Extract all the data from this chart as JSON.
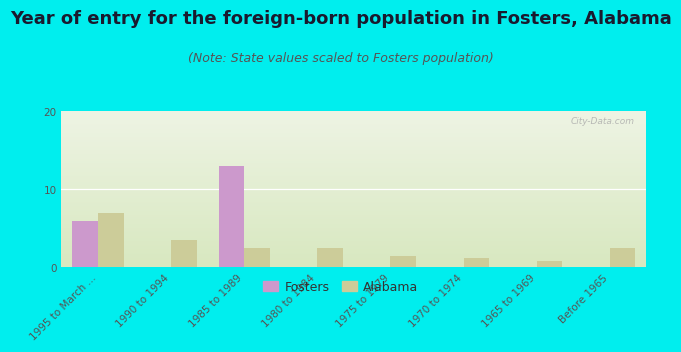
{
  "title": "Year of entry for the foreign-born population in Fosters, Alabama",
  "subtitle": "(Note: State values scaled to Fosters population)",
  "background_color": "#00eeee",
  "watermark": "City-Data.com",
  "categories": [
    "1995 to March ...",
    "1990 to 1994",
    "1985 to 1989",
    "1980 to 1984",
    "1975 to 1979",
    "1970 to 1974",
    "1965 to 1969",
    "Before 1965"
  ],
  "fosters_values": [
    6,
    0,
    13,
    0,
    0,
    0,
    0,
    0
  ],
  "alabama_values": [
    7,
    3.5,
    2.5,
    2.5,
    1.5,
    1.2,
    0.8,
    2.5
  ],
  "fosters_color": "#cc99cc",
  "alabama_color": "#cccc99",
  "ylim": [
    0,
    20
  ],
  "yticks": [
    0,
    10,
    20
  ],
  "bar_width": 0.35,
  "legend_fosters": "Fosters",
  "legend_alabama": "Alabama",
  "title_fontsize": 13,
  "subtitle_fontsize": 9,
  "tick_fontsize": 7.5,
  "legend_fontsize": 9,
  "plot_grad_bottom": "#d8e8c0",
  "plot_grad_top": "#eef4e4"
}
